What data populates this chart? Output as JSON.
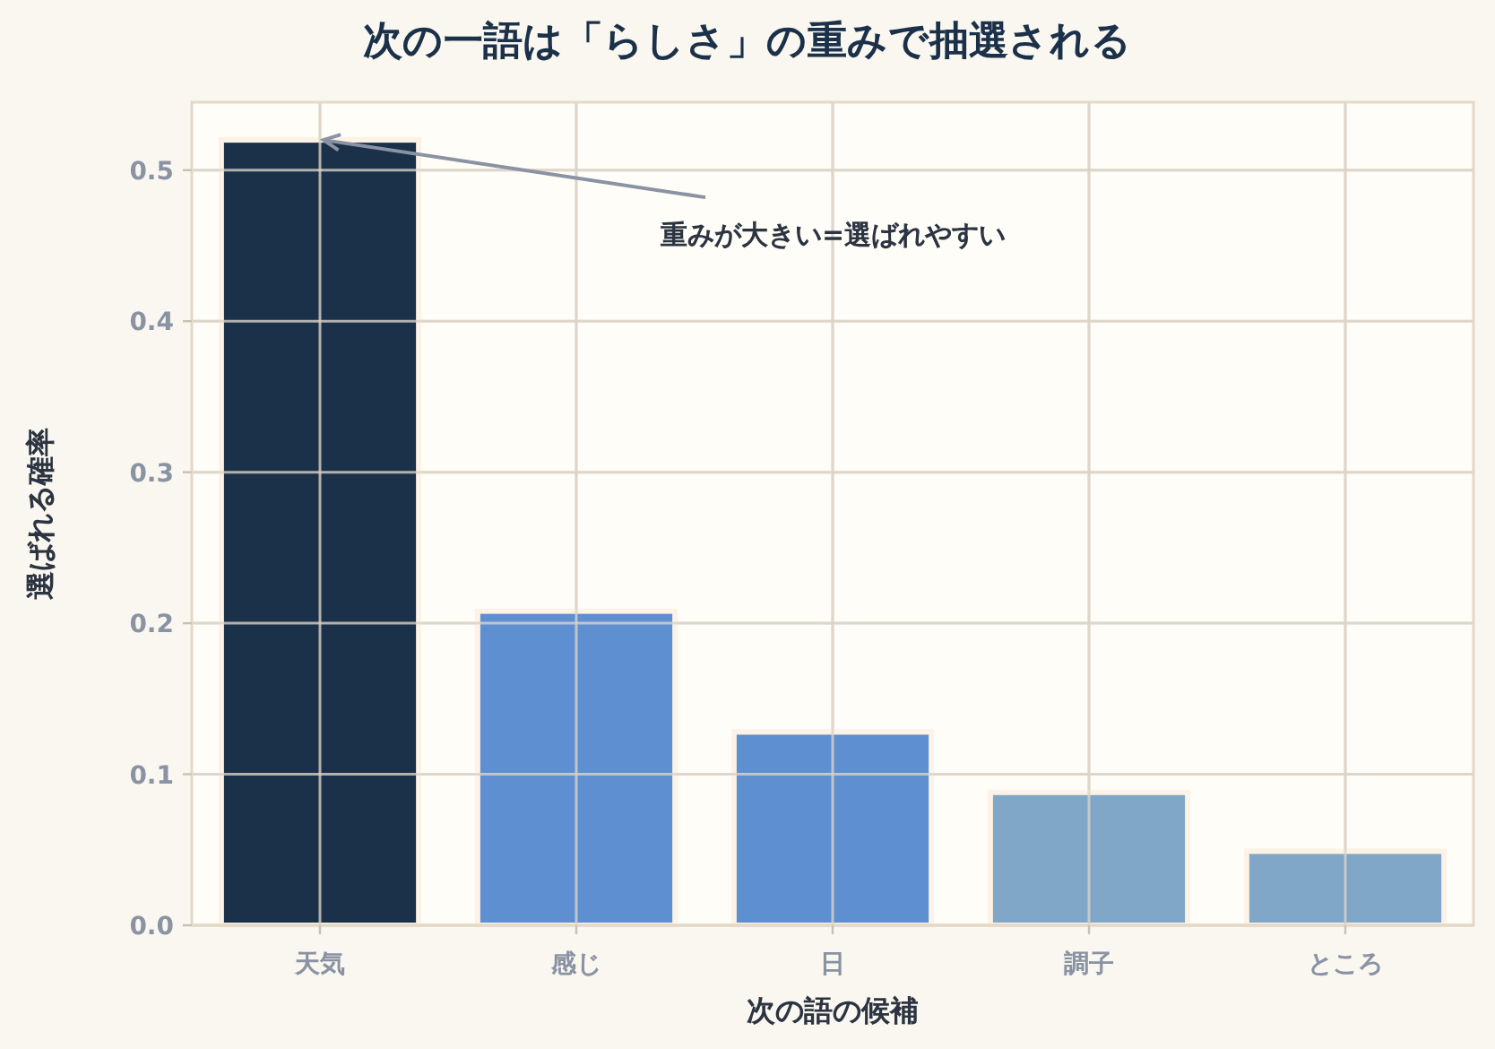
{
  "chart_data": {
    "type": "bar",
    "title": "次の一語は「らしさ」の重みで抽選される",
    "xlabel": "次の語の候補",
    "ylabel": "選ばれる確率",
    "categories": [
      "天気",
      "感じ",
      "日",
      "調子",
      "ところ"
    ],
    "values": [
      0.52,
      0.208,
      0.128,
      0.088,
      0.049
    ],
    "colors": [
      "#1b3149",
      "#5e8fd1",
      "#5e8fd1",
      "#80a7c8",
      "#80a7c8"
    ],
    "ylim": [
      0,
      0.545
    ],
    "yticks": [
      {
        "value": 0,
        "label": "0.0"
      },
      {
        "value": 0.1,
        "label": "0.1"
      },
      {
        "value": 0.2,
        "label": "0.2"
      },
      {
        "value": 0.3,
        "label": "0.3"
      },
      {
        "value": 0.4,
        "label": "0.4"
      },
      {
        "value": 0.5,
        "label": "0.5"
      }
    ],
    "grid": true,
    "annotations": [
      {
        "text": "重みが大きい=選ばれやすい",
        "x": "天気",
        "y": 0.52
      }
    ]
  }
}
